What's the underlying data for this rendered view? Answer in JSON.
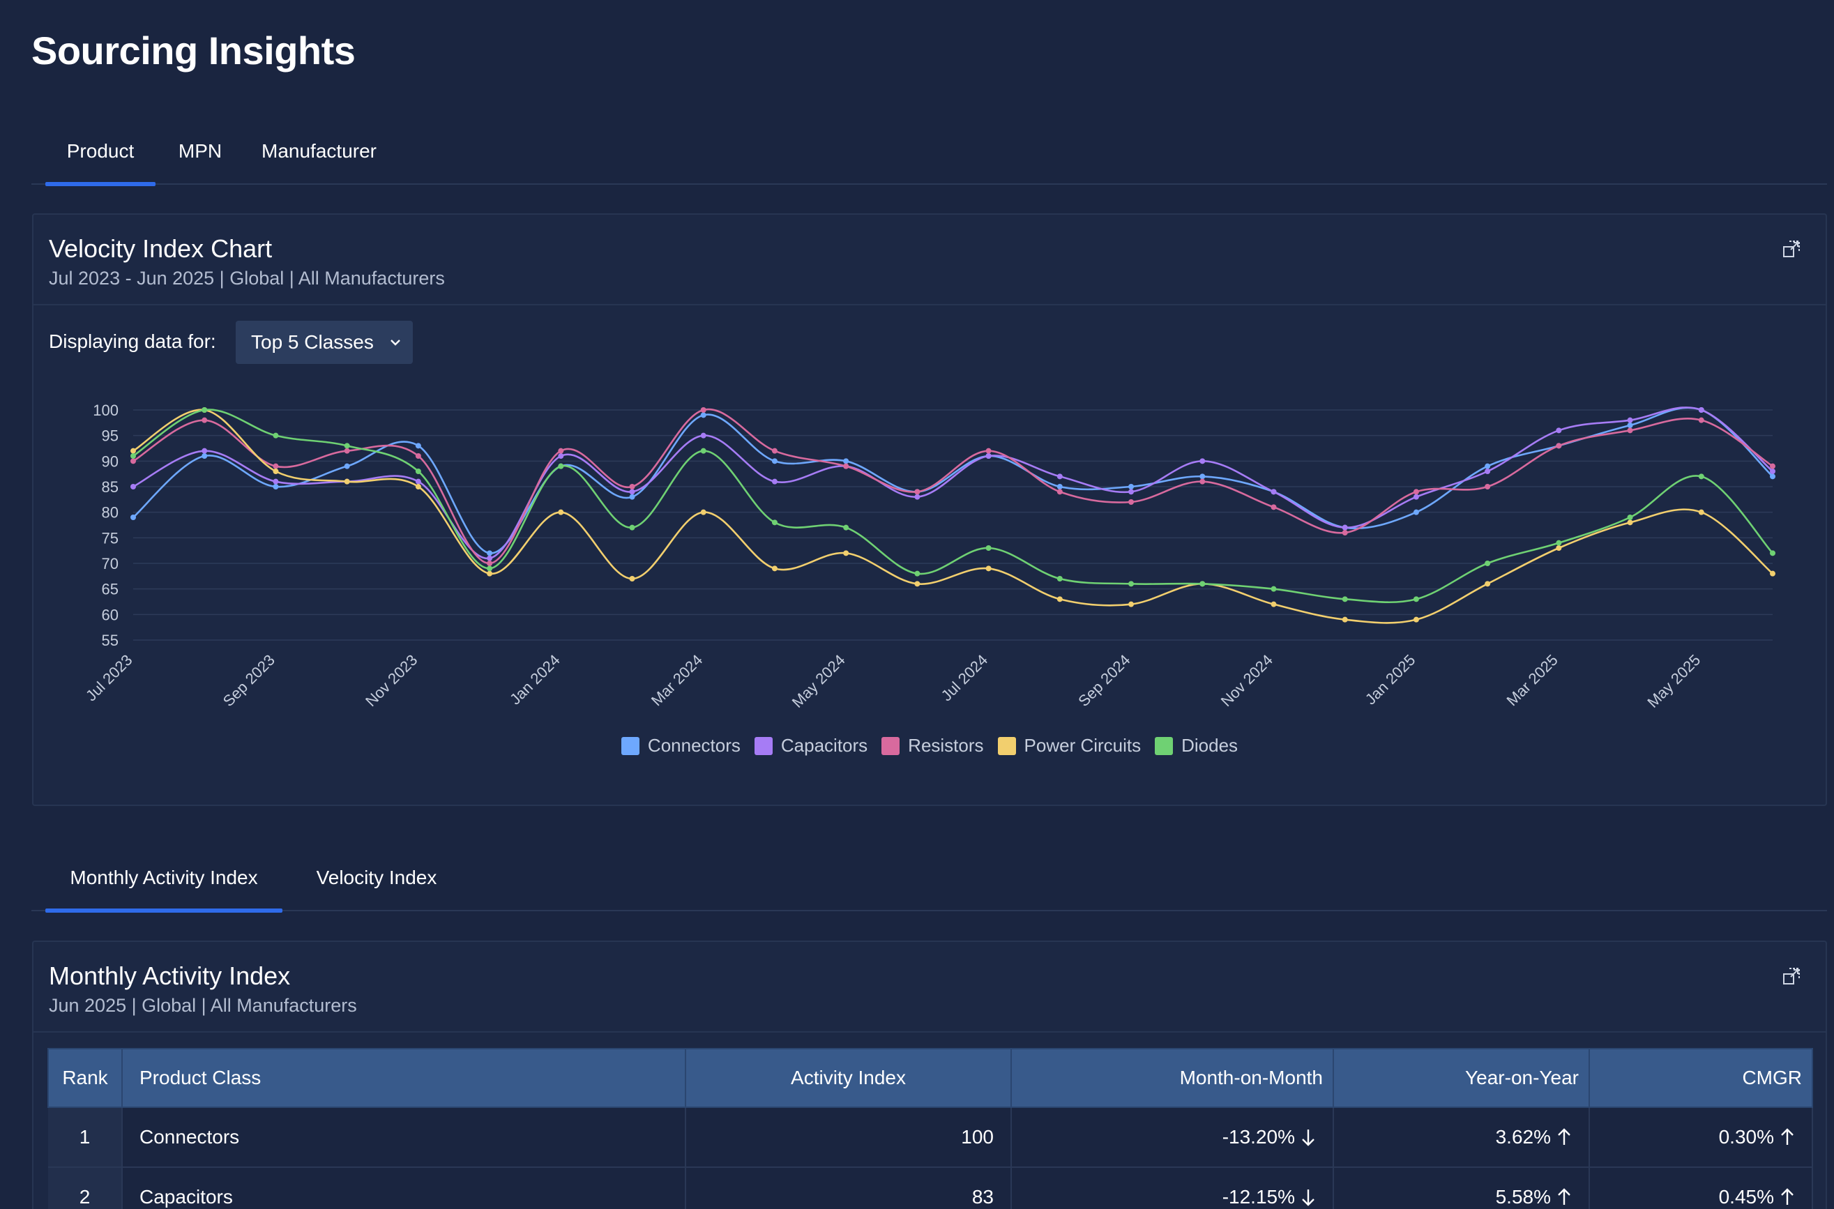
{
  "page": {
    "title": "Sourcing Insights"
  },
  "top_tabs": [
    {
      "label": "Product",
      "active": true
    },
    {
      "label": "MPN",
      "active": false
    },
    {
      "label": "Manufacturer",
      "active": false
    }
  ],
  "velocity_panel": {
    "title": "Velocity Index Chart",
    "subtitle": "Jul 2023 - Jun 2025 | Global | All Manufacturers",
    "display_label": "Displaying data for:",
    "dropdown_value": "Top 5 Classes"
  },
  "chart_data": {
    "type": "line",
    "title": "Velocity Index Chart",
    "x": [
      "Jul 2023",
      "Aug 2023",
      "Sep 2023",
      "Oct 2023",
      "Nov 2023",
      "Dec 2023",
      "Jan 2024",
      "Feb 2024",
      "Mar 2024",
      "Apr 2024",
      "May 2024",
      "Jun 2024",
      "Jul 2024",
      "Aug 2024",
      "Sep 2024",
      "Oct 2024",
      "Nov 2024",
      "Dec 2024",
      "Jan 2025",
      "Feb 2025",
      "Mar 2025",
      "Apr 2025",
      "May 2025",
      "Jun 2025"
    ],
    "x_tick_labels": [
      "Jul 2023",
      "Sep 2023",
      "Nov 2023",
      "Jan 2024",
      "Mar 2024",
      "May 2024",
      "Jul 2024",
      "Sep 2024",
      "Nov 2024",
      "Jan 2025",
      "Mar 2025",
      "May 2025"
    ],
    "y_ticks": [
      100,
      95,
      90,
      85,
      80,
      75,
      70,
      65,
      60,
      55
    ],
    "ylim": [
      55,
      100
    ],
    "grid": true,
    "legend_position": "bottom-center",
    "series": [
      {
        "name": "Connectors",
        "color": "#6ea8fe",
        "values": [
          79,
          91,
          85,
          89,
          93,
          72,
          89,
          83,
          99,
          90,
          90,
          84,
          91,
          85,
          85,
          87,
          84,
          77,
          80,
          89,
          93,
          97,
          100,
          87
        ]
      },
      {
        "name": "Capacitors",
        "color": "#a67cf5",
        "values": [
          85,
          92,
          86,
          86,
          86,
          71,
          91,
          84,
          95,
          86,
          89,
          83,
          91,
          87,
          84,
          90,
          84,
          77,
          83,
          88,
          96,
          98,
          100,
          88
        ]
      },
      {
        "name": "Resistors",
        "color": "#d86a9e",
        "values": [
          90,
          98,
          89,
          92,
          91,
          70,
          92,
          85,
          100,
          92,
          89,
          84,
          92,
          84,
          82,
          86,
          81,
          76,
          84,
          85,
          93,
          96,
          98,
          89
        ]
      },
      {
        "name": "Power Circuits",
        "color": "#f2cf6e",
        "values": [
          92,
          100,
          88,
          86,
          85,
          68,
          80,
          67,
          80,
          69,
          72,
          66,
          69,
          63,
          62,
          66,
          62,
          59,
          59,
          66,
          73,
          78,
          80,
          68
        ]
      },
      {
        "name": "Diodes",
        "color": "#6fd173",
        "values": [
          91,
          100,
          95,
          93,
          88,
          69,
          89,
          77,
          92,
          78,
          77,
          68,
          73,
          67,
          66,
          66,
          65,
          63,
          63,
          70,
          74,
          79,
          87,
          72
        ]
      }
    ]
  },
  "bottom_tabs": [
    {
      "label": "Monthly Activity Index",
      "active": true
    },
    {
      "label": "Velocity Index",
      "active": false
    }
  ],
  "activity_panel": {
    "title": "Monthly Activity Index",
    "subtitle": "Jun 2025 | Global | All Manufacturers",
    "columns": [
      "Rank",
      "Product Class",
      "Activity Index",
      "Month-on-Month",
      "Year-on-Year",
      "CMGR"
    ],
    "rows": [
      {
        "rank": "1",
        "product_class": "Connectors",
        "activity_index": "100",
        "mom": "-13.20%",
        "mom_dir": "down",
        "yoy": "3.62%",
        "yoy_dir": "up",
        "cmgr": "0.30%",
        "cmgr_dir": "up"
      },
      {
        "rank": "2",
        "product_class": "Capacitors",
        "activity_index": "83",
        "mom": "-12.15%",
        "mom_dir": "down",
        "yoy": "5.58%",
        "yoy_dir": "up",
        "cmgr": "0.45%",
        "cmgr_dir": "up"
      }
    ]
  }
}
